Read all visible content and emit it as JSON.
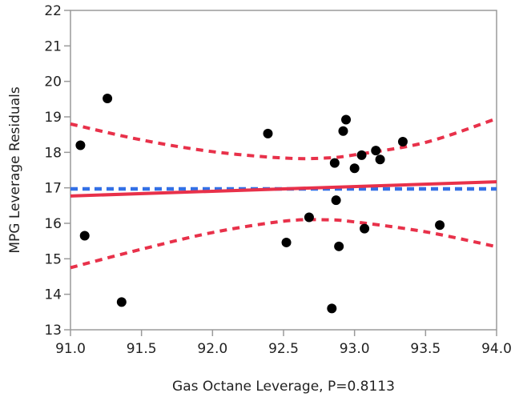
{
  "chart_data": {
    "type": "scatter",
    "title": "",
    "xlabel": "Gas Octane Leverage, P=0.8113",
    "ylabel": "MPG Leverage Residuals",
    "xlim": [
      91.0,
      94.0
    ],
    "ylim": [
      13,
      22
    ],
    "x_ticks": [
      "91.0",
      "91.5",
      "92.0",
      "92.5",
      "93.0",
      "93.5",
      "94.0"
    ],
    "y_ticks": [
      "13",
      "14",
      "15",
      "16",
      "17",
      "18",
      "19",
      "20",
      "21",
      "22"
    ],
    "grid": false,
    "legend": "none",
    "points": [
      {
        "x": 91.07,
        "y": 18.2
      },
      {
        "x": 91.1,
        "y": 15.65
      },
      {
        "x": 91.26,
        "y": 19.52
      },
      {
        "x": 91.36,
        "y": 13.78
      },
      {
        "x": 92.39,
        "y": 18.53
      },
      {
        "x": 92.52,
        "y": 15.46
      },
      {
        "x": 92.68,
        "y": 16.17
      },
      {
        "x": 92.84,
        "y": 13.6
      },
      {
        "x": 92.86,
        "y": 17.7
      },
      {
        "x": 92.87,
        "y": 16.65
      },
      {
        "x": 92.89,
        "y": 15.35
      },
      {
        "x": 92.92,
        "y": 18.6
      },
      {
        "x": 92.94,
        "y": 18.92
      },
      {
        "x": 93.0,
        "y": 17.55
      },
      {
        "x": 93.05,
        "y": 17.92
      },
      {
        "x": 93.07,
        "y": 15.85
      },
      {
        "x": 93.15,
        "y": 18.05
      },
      {
        "x": 93.18,
        "y": 17.8
      },
      {
        "x": 93.34,
        "y": 18.3
      },
      {
        "x": 93.6,
        "y": 15.95
      }
    ],
    "fit_line": {
      "x": [
        91.0,
        94.0
      ],
      "y": [
        16.77,
        17.17
      ]
    },
    "mean_line": {
      "y": 16.97
    },
    "confidence_upper": [
      {
        "x": 91.0,
        "y": 18.8
      },
      {
        "x": 91.5,
        "y": 18.35
      },
      {
        "x": 92.0,
        "y": 18.02
      },
      {
        "x": 92.5,
        "y": 17.84
      },
      {
        "x": 92.8,
        "y": 17.84
      },
      {
        "x": 93.0,
        "y": 17.93
      },
      {
        "x": 93.5,
        "y": 18.28
      },
      {
        "x": 94.0,
        "y": 18.95
      }
    ],
    "confidence_lower": [
      {
        "x": 91.0,
        "y": 14.75
      },
      {
        "x": 91.5,
        "y": 15.27
      },
      {
        "x": 92.0,
        "y": 15.74
      },
      {
        "x": 92.5,
        "y": 16.06
      },
      {
        "x": 92.8,
        "y": 16.1
      },
      {
        "x": 93.0,
        "y": 16.04
      },
      {
        "x": 93.5,
        "y": 15.76
      },
      {
        "x": 94.0,
        "y": 15.34
      }
    ],
    "colors": {
      "points": "#000000",
      "fit_line": "#e8314a",
      "confidence": "#e8314a",
      "mean_line": "#3370e6",
      "axes": "#9a9a9a"
    }
  }
}
